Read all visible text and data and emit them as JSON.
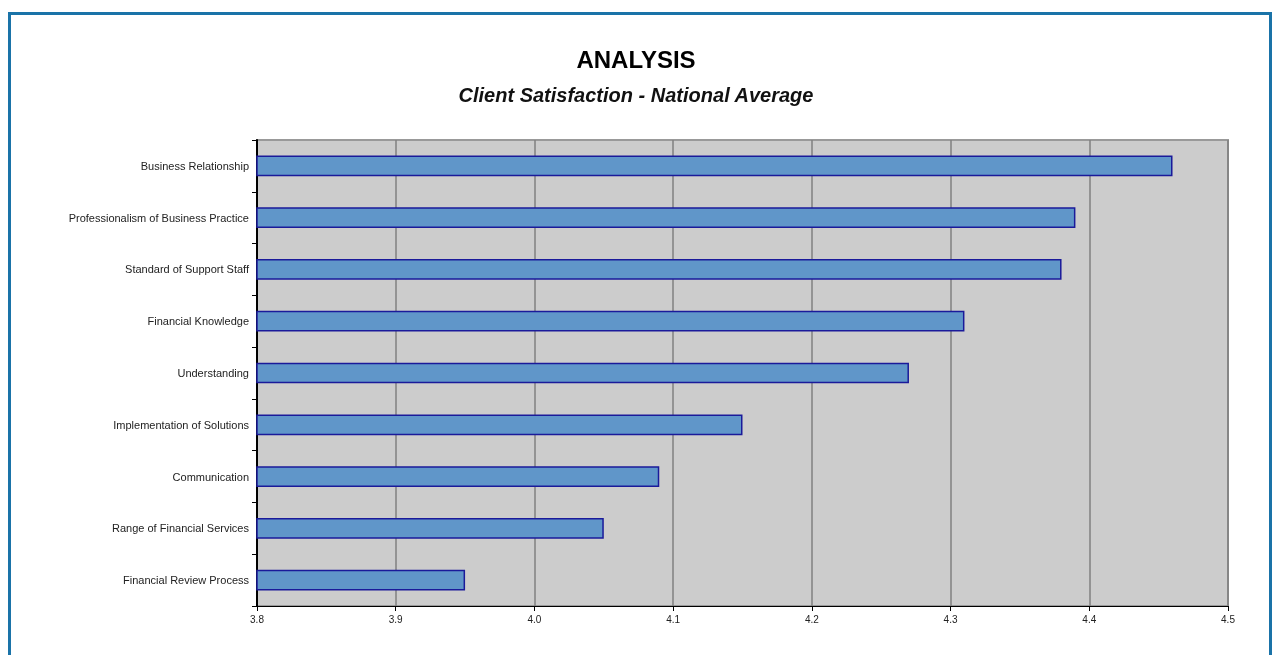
{
  "chart_data": {
    "type": "bar",
    "orientation": "horizontal",
    "title": "ANALYSIS",
    "subtitle": "Client Satisfaction - National Average",
    "categories": [
      "Business Relationship",
      "Professionalism of Business Practice",
      "Standard of Support Staff",
      "Financial Knowledge",
      "Understanding",
      "Implementation of Solutions",
      "Communication",
      "Range of Financial Services",
      "Financial Review Process"
    ],
    "values": [
      4.46,
      4.39,
      4.38,
      4.31,
      4.27,
      4.15,
      4.09,
      4.05,
      3.95
    ],
    "color": "#6096c9",
    "xlim": [
      3.8,
      4.5
    ],
    "xticks": [
      3.8,
      3.9,
      {
        "value": 4,
        "label": "4.0"
      },
      4.1,
      4.2,
      4.3,
      4.4,
      4.5
    ],
    "grid": "x"
  }
}
